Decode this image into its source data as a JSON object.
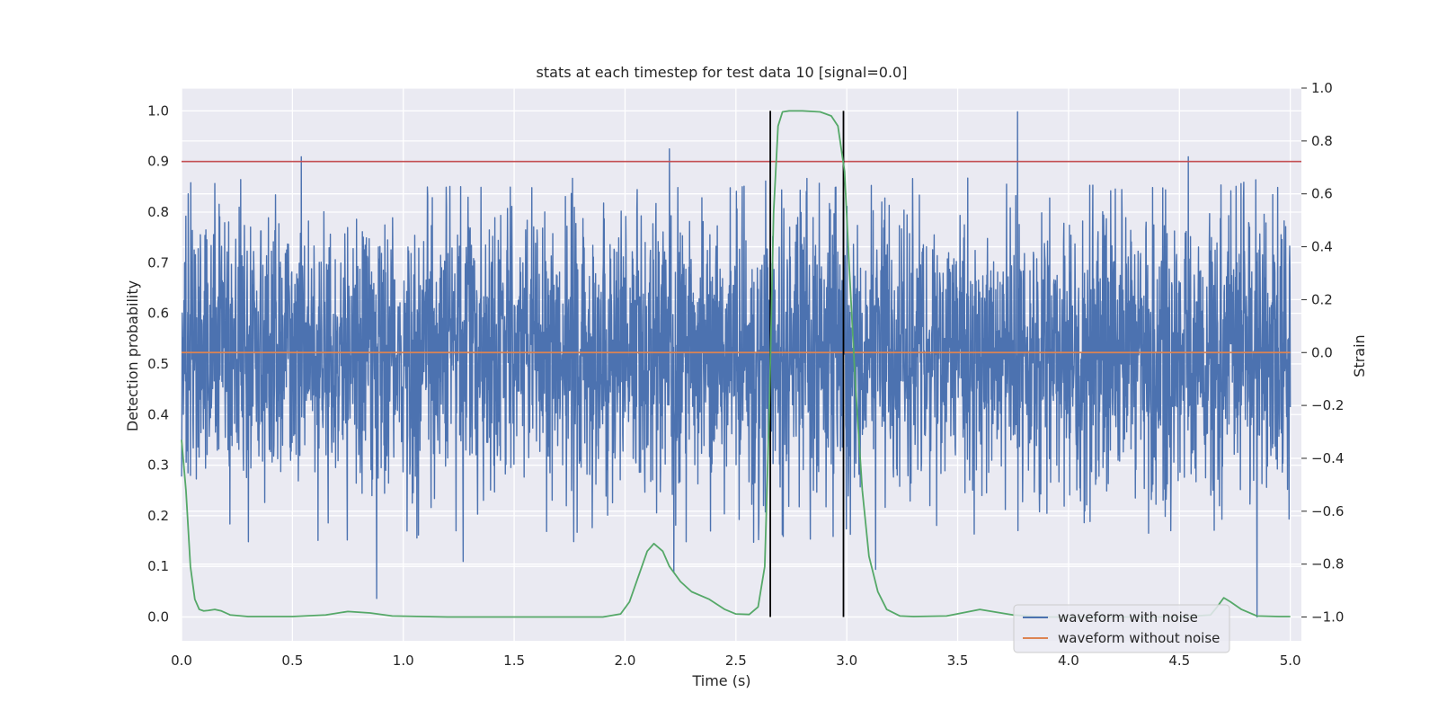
{
  "chart_data": {
    "type": "line",
    "title": "stats at each timestep for test data 10 [signal=0.0]",
    "xlabel": "Time (s)",
    "ylabel": "Detection probability",
    "y2label": "Strain",
    "xlim": [
      0.0,
      5.05
    ],
    "ylim": [
      -0.047,
      1.045
    ],
    "y2lim": [
      -1.09,
      1.0
    ],
    "x_ticks": [
      "0.0",
      "0.5",
      "1.0",
      "1.5",
      "2.0",
      "2.5",
      "3.0",
      "3.5",
      "4.0",
      "4.5",
      "5.0"
    ],
    "y_ticks": [
      "0.0",
      "0.1",
      "0.2",
      "0.3",
      "0.4",
      "0.5",
      "0.6",
      "0.7",
      "0.8",
      "0.9",
      "1.0"
    ],
    "y2_ticks": [
      "−1.0",
      "−0.8",
      "−0.6",
      "−0.4",
      "−0.2",
      "0.0",
      "0.2",
      "0.4",
      "0.6",
      "0.8",
      "1.0"
    ],
    "grid": true,
    "legend_position": "lower right",
    "colors": {
      "background": "#eaeaf2",
      "noisy_waveform": "#4c72b0",
      "clean_waveform": "#dd8452",
      "probability": "#55a868",
      "threshold": "#c44e52",
      "markers": "#000000"
    },
    "series": [
      {
        "name": "waveform with noise",
        "axis": "right",
        "description_note": "",
        "noise_amplitude_std": 0.27,
        "noise_peaks": [
          {
            "x": 0.03,
            "y": 0.6
          },
          {
            "x": 0.54,
            "y": 0.74
          },
          {
            "x": 0.88,
            "y": -0.93
          },
          {
            "x": 1.27,
            "y": -0.79
          },
          {
            "x": 2.2,
            "y": 0.77
          },
          {
            "x": 2.22,
            "y": -0.83
          },
          {
            "x": 3.13,
            "y": -0.82
          },
          {
            "x": 3.77,
            "y": 0.91
          },
          {
            "x": 4.54,
            "y": 0.74
          },
          {
            "x": 4.85,
            "y": -1.0
          }
        ]
      },
      {
        "name": "waveform without noise",
        "axis": "right",
        "x": [
          0.0,
          5.0
        ],
        "y": [
          0.0,
          0.0
        ]
      },
      {
        "name": "",
        "axis": "left",
        "x": [
          0.0,
          0.02,
          0.04,
          0.06,
          0.08,
          0.1,
          0.12,
          0.15,
          0.18,
          0.22,
          0.3,
          0.5,
          0.65,
          0.75,
          0.85,
          0.95,
          1.2,
          1.6,
          1.9,
          1.98,
          2.02,
          2.06,
          2.1,
          2.13,
          2.17,
          2.2,
          2.25,
          2.3,
          2.38,
          2.45,
          2.5,
          2.56,
          2.6,
          2.63,
          2.65,
          2.67,
          2.69,
          2.71,
          2.74,
          2.8,
          2.88,
          2.93,
          2.96,
          2.99,
          3.01,
          3.04,
          3.07,
          3.1,
          3.14,
          3.18,
          3.24,
          3.3,
          3.45,
          3.6,
          3.75,
          3.9,
          4.2,
          4.5,
          4.64,
          4.67,
          4.7,
          4.73,
          4.78,
          4.85,
          4.95,
          5.0
        ],
        "y": [
          0.35,
          0.25,
          0.1,
          0.035,
          0.015,
          0.012,
          0.013,
          0.015,
          0.012,
          0.004,
          0.001,
          0.001,
          0.004,
          0.011,
          0.008,
          0.002,
          0.0,
          0.0,
          0.0,
          0.006,
          0.03,
          0.08,
          0.13,
          0.145,
          0.13,
          0.1,
          0.07,
          0.05,
          0.035,
          0.015,
          0.006,
          0.005,
          0.02,
          0.1,
          0.4,
          0.8,
          0.97,
          0.998,
          1.0,
          1.0,
          0.998,
          0.99,
          0.97,
          0.88,
          0.7,
          0.45,
          0.25,
          0.12,
          0.05,
          0.015,
          0.002,
          0.001,
          0.002,
          0.015,
          0.004,
          0.0,
          0.0,
          0.0,
          0.004,
          0.02,
          0.038,
          0.03,
          0.015,
          0.002,
          0.001,
          0.001
        ]
      }
    ],
    "threshold_line": {
      "axis": "left",
      "y": 0.9
    },
    "marker_lines": [
      {
        "x": 2.655,
        "y_range": [
          0.0,
          1.0
        ]
      },
      {
        "x": 2.985,
        "y_range": [
          0.0,
          1.0
        ]
      }
    ]
  }
}
